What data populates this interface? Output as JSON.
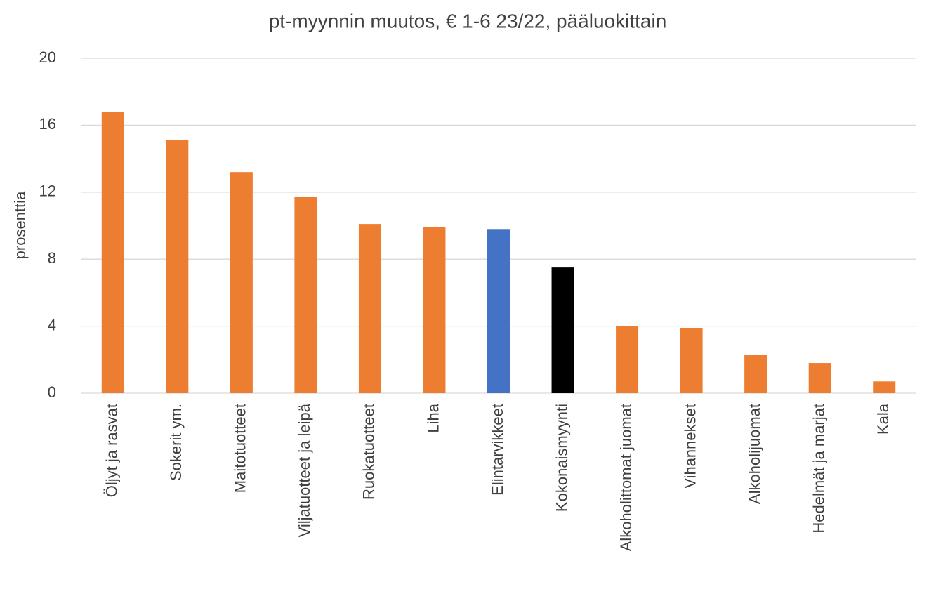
{
  "chart_data": {
    "type": "bar",
    "title": "pt-myynnin muutos, € 1-6 23/22, pääluokittain",
    "ylabel": "prosenttia",
    "categories": [
      "Öljyt ja rasvat",
      "Sokerit ym.",
      "Maitotuotteet",
      "Viljatuotteet ja leipä",
      "Ruokatuotteet",
      "Liha",
      "Elintarvikkeet",
      "Kokonaismyynti",
      "Alkoholittomat juomat",
      "Vihannekset",
      "Alkoholijuomat",
      "Hedelmät ja marjat",
      "Kala"
    ],
    "values": [
      16.8,
      15.1,
      13.2,
      11.7,
      10.1,
      9.9,
      9.8,
      7.5,
      4.0,
      3.9,
      2.3,
      1.8,
      0.7
    ],
    "colors": [
      "#ed7d31",
      "#ed7d31",
      "#ed7d31",
      "#ed7d31",
      "#ed7d31",
      "#ed7d31",
      "#4472c4",
      "#000000",
      "#ed7d31",
      "#ed7d31",
      "#ed7d31",
      "#ed7d31",
      "#ed7d31"
    ],
    "ylim": [
      0,
      20
    ],
    "yticks": [
      0,
      4,
      8,
      12,
      16,
      20
    ],
    "grid": true
  }
}
